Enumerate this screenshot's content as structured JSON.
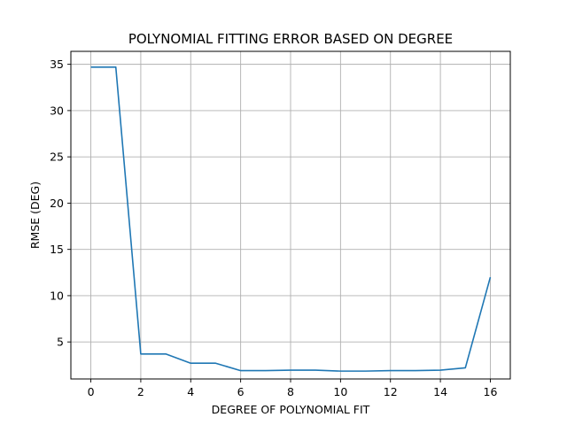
{
  "chart_data": {
    "type": "line",
    "title": "POLYNOMIAL FITTING ERROR BASED ON DEGREE",
    "xlabel": "DEGREE OF POLYNOMIAL FIT",
    "ylabel": "RMSE (DEG)",
    "xlim": [
      -0.8,
      16.8
    ],
    "ylim": [
      1.0,
      36.4
    ],
    "grid": true,
    "x_ticks": [
      "0",
      "2",
      "4",
      "6",
      "8",
      "10",
      "12",
      "14",
      "16"
    ],
    "y_ticks": [
      "5",
      "10",
      "15",
      "20",
      "25",
      "30",
      "35"
    ],
    "series": [
      {
        "color": "#1f77b4",
        "x": [
          0,
          1,
          2,
          3,
          4,
          5,
          6,
          7,
          8,
          9,
          10,
          11,
          12,
          13,
          14,
          15,
          16
        ],
        "y": [
          34.7,
          34.7,
          3.7,
          3.7,
          2.7,
          2.7,
          1.9,
          1.9,
          1.95,
          1.95,
          1.85,
          1.85,
          1.9,
          1.9,
          1.95,
          2.2,
          12.0
        ]
      }
    ]
  }
}
